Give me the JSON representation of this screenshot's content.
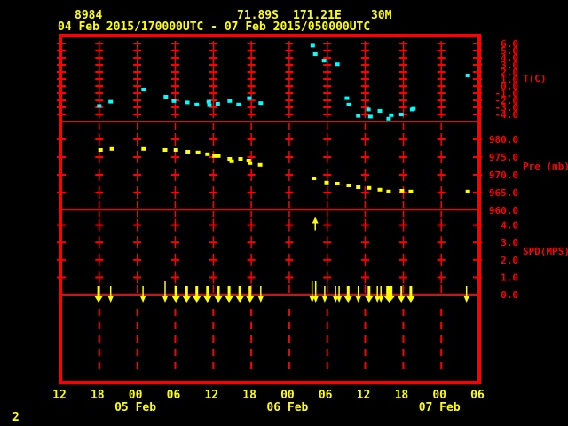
{
  "header": {
    "station_id": "8984",
    "latitude": "71.89S",
    "longitude": "171.21E",
    "elevation": "30M",
    "period": "04 Feb 2015/170000UTC - 07 Feb 2015/050000UTC"
  },
  "page_number": "2",
  "colors": {
    "background": "#000000",
    "grid": "#ff0000",
    "axis_text": "#ff0000",
    "header_text": "#ffff00",
    "temperature_series": "#00ffff",
    "pressure_series": "#ffff00",
    "wind_arrows": "#ffff00",
    "x_axis_text": "#ffff00"
  },
  "chart_data": {
    "type": "scatter",
    "title": "",
    "x_axis": {
      "start": "04 Feb 2015 12UTC",
      "tick_interval_hours": 6,
      "range_hours": [
        0,
        66
      ],
      "tick_labels": [
        "12",
        "18",
        "00",
        "06",
        "12",
        "18",
        "00",
        "06",
        "12",
        "18",
        "00",
        "06"
      ],
      "date_labels": [
        {
          "label": "05 Feb",
          "tick": 2
        },
        {
          "label": "06 Feb",
          "tick": 6
        },
        {
          "label": "07 Feb",
          "tick": 10
        }
      ]
    },
    "panels": [
      {
        "id": "temperature",
        "ylabel": "T(C)",
        "ytick_labels": [
          "6.0",
          "5.0",
          "4.0",
          "3.0",
          "2.0",
          "1.0",
          "0.0",
          "-1.0",
          "-2.0",
          "-3.0",
          "-4.0"
        ],
        "yticks": [
          6,
          5,
          4,
          3,
          2,
          1,
          0,
          -1,
          -2,
          -3,
          -4
        ],
        "ylim": [
          7,
          -5
        ],
        "points": [
          {
            "h": 6.0,
            "v": -2.8
          },
          {
            "h": 7.8,
            "v": -2.2
          },
          {
            "h": 13.0,
            "v": -0.5
          },
          {
            "h": 16.5,
            "v": -1.5
          },
          {
            "h": 17.8,
            "v": -2.1
          },
          {
            "h": 19.9,
            "v": -2.3
          },
          {
            "h": 21.4,
            "v": -2.6
          },
          {
            "h": 23.3,
            "v": -2.2
          },
          {
            "h": 23.4,
            "v": -2.7
          },
          {
            "h": 24.7,
            "v": -2.5
          },
          {
            "h": 26.6,
            "v": -2.1
          },
          {
            "h": 28.0,
            "v": -2.6
          },
          {
            "h": 29.7,
            "v": -1.7
          },
          {
            "h": 31.5,
            "v": -2.4
          },
          {
            "h": 39.7,
            "v": 5.7
          },
          {
            "h": 40.1,
            "v": 4.5
          },
          {
            "h": 41.5,
            "v": 3.6
          },
          {
            "h": 43.6,
            "v": 3.1
          },
          {
            "h": 45.1,
            "v": -1.7
          },
          {
            "h": 45.4,
            "v": -2.6
          },
          {
            "h": 46.9,
            "v": -4.2
          },
          {
            "h": 48.5,
            "v": -3.3
          },
          {
            "h": 48.8,
            "v": -4.3
          },
          {
            "h": 50.3,
            "v": -3.5
          },
          {
            "h": 51.7,
            "v": -4.6
          },
          {
            "h": 52.1,
            "v": -4.1
          },
          {
            "h": 53.7,
            "v": -4.0
          },
          {
            "h": 55.4,
            "v": -3.3
          },
          {
            "h": 55.6,
            "v": -3.2
          },
          {
            "h": 64.2,
            "v": 1.5
          }
        ]
      },
      {
        "id": "pressure",
        "ylabel": "Pre (mb)",
        "ytick_labels": [
          "980.0",
          "975.0",
          "970.0",
          "965.0",
          "960.0"
        ],
        "yticks": [
          980,
          975,
          970,
          965,
          960
        ],
        "ylim": [
          985,
          960
        ],
        "points": [
          {
            "h": 6.2,
            "v": 977.0
          },
          {
            "h": 8.0,
            "v": 977.3
          },
          {
            "h": 13.0,
            "v": 977.3
          },
          {
            "h": 16.4,
            "v": 977.0
          },
          {
            "h": 18.1,
            "v": 977.0
          },
          {
            "h": 20.0,
            "v": 976.5
          },
          {
            "h": 21.6,
            "v": 976.3
          },
          {
            "h": 23.1,
            "v": 975.8
          },
          {
            "h": 24.2,
            "v": 975.3
          },
          {
            "h": 24.8,
            "v": 975.3
          },
          {
            "h": 26.6,
            "v": 974.5
          },
          {
            "h": 26.9,
            "v": 973.8
          },
          {
            "h": 28.3,
            "v": 974.5
          },
          {
            "h": 29.6,
            "v": 974.0
          },
          {
            "h": 29.8,
            "v": 973.3
          },
          {
            "h": 31.4,
            "v": 972.8
          },
          {
            "h": 39.9,
            "v": 969.0
          },
          {
            "h": 41.9,
            "v": 967.8
          },
          {
            "h": 43.6,
            "v": 967.5
          },
          {
            "h": 45.4,
            "v": 967.0
          },
          {
            "h": 46.9,
            "v": 966.5
          },
          {
            "h": 48.6,
            "v": 966.3
          },
          {
            "h": 50.3,
            "v": 965.8
          },
          {
            "h": 51.7,
            "v": 965.3
          },
          {
            "h": 53.8,
            "v": 965.5
          },
          {
            "h": 55.2,
            "v": 965.3
          },
          {
            "h": 64.2,
            "v": 965.3
          }
        ]
      },
      {
        "id": "wind_speed",
        "ylabel": "SPD(MPS)",
        "ytick_labels": [
          "4.0",
          "3.0",
          "2.0",
          "1.0",
          "0.0"
        ],
        "yticks": [
          4,
          3,
          2,
          1,
          0
        ],
        "ylim": [
          4.9,
          0
        ],
        "arrows": [
          {
            "h": 5.9,
            "dir": "down",
            "weight": "bold"
          },
          {
            "h": 7.8,
            "dir": "down",
            "weight": "thin"
          },
          {
            "h": 12.9,
            "dir": "down",
            "weight": "thin"
          },
          {
            "h": 16.4,
            "dir": "down",
            "weight": "thin",
            "tall": true
          },
          {
            "h": 18.1,
            "dir": "down",
            "weight": "bold"
          },
          {
            "h": 19.8,
            "dir": "down",
            "weight": "bold"
          },
          {
            "h": 21.4,
            "dir": "down",
            "weight": "bold"
          },
          {
            "h": 23.1,
            "dir": "down",
            "weight": "bold"
          },
          {
            "h": 24.8,
            "dir": "down",
            "weight": "bold"
          },
          {
            "h": 26.5,
            "dir": "down",
            "weight": "bold"
          },
          {
            "h": 28.2,
            "dir": "down",
            "weight": "bold"
          },
          {
            "h": 29.8,
            "dir": "down",
            "weight": "bold"
          },
          {
            "h": 31.5,
            "dir": "down",
            "weight": "thin"
          },
          {
            "h": 39.9,
            "dir": "down",
            "weight": "double",
            "tall": true
          },
          {
            "h": 40.1,
            "dir": "up",
            "weight": "thin",
            "s": 3.7
          },
          {
            "h": 41.6,
            "dir": "down",
            "weight": "thin"
          },
          {
            "h": 43.6,
            "dir": "down",
            "weight": "double"
          },
          {
            "h": 45.3,
            "dir": "down",
            "weight": "bold"
          },
          {
            "h": 46.9,
            "dir": "down",
            "weight": "thin"
          },
          {
            "h": 48.6,
            "dir": "down",
            "weight": "bold"
          },
          {
            "h": 50.2,
            "dir": "down",
            "weight": "double"
          },
          {
            "h": 51.8,
            "dir": "down",
            "weight": "wide"
          },
          {
            "h": 53.7,
            "dir": "down",
            "weight": "medium"
          },
          {
            "h": 55.2,
            "dir": "down",
            "weight": "bold"
          },
          {
            "h": 64.0,
            "dir": "down",
            "weight": "thin"
          }
        ]
      }
    ]
  }
}
